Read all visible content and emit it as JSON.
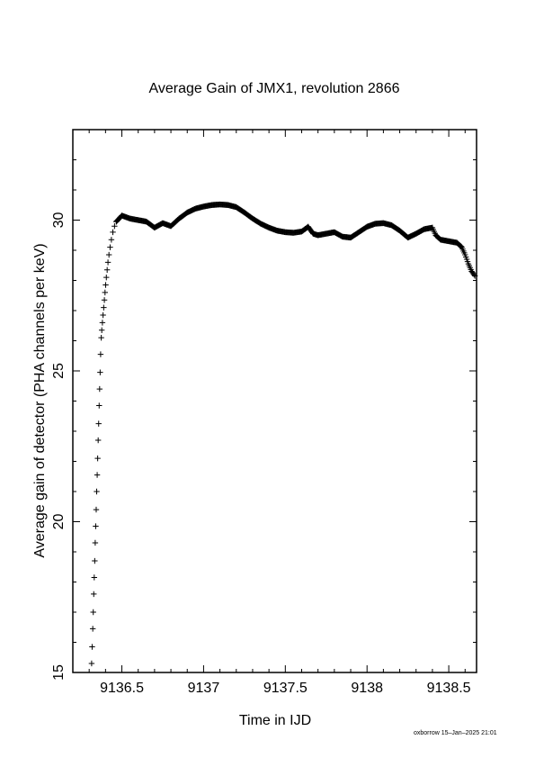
{
  "chart_data": {
    "type": "scatter",
    "title": "Average Gain of JMX1, revolution 2866",
    "xlabel": "Time in IJD",
    "ylabel": "Average gain of detector (PHA channels per keV)",
    "xlim": [
      9136.2,
      9138.67
    ],
    "ylim": [
      15,
      33
    ],
    "x_ticks": [
      9136.5,
      9137,
      9137.5,
      9138,
      9138.5
    ],
    "x_tick_labels": [
      "9136.5",
      "9137",
      "9137.5",
      "9138",
      "9138.5"
    ],
    "y_ticks": [
      15,
      20,
      25,
      30
    ],
    "y_tick_labels": [
      "15",
      "20",
      "25",
      "30"
    ],
    "marker": "+",
    "grid": false,
    "points_sparse": [
      [
        9136.315,
        15.3
      ],
      [
        9136.318,
        15.85
      ],
      [
        9136.322,
        16.45
      ],
      [
        9136.325,
        17.0
      ],
      [
        9136.328,
        17.6
      ],
      [
        9136.331,
        18.15
      ],
      [
        9136.334,
        18.7
      ],
      [
        9136.337,
        19.3
      ],
      [
        9136.34,
        19.85
      ],
      [
        9136.343,
        20.4
      ],
      [
        9136.346,
        21.0
      ],
      [
        9136.349,
        21.55
      ],
      [
        9136.352,
        22.1
      ],
      [
        9136.355,
        22.7
      ],
      [
        9136.358,
        23.25
      ],
      [
        9136.361,
        23.85
      ],
      [
        9136.364,
        24.4
      ],
      [
        9136.367,
        24.95
      ],
      [
        9136.37,
        25.55
      ],
      [
        9136.374,
        26.1
      ],
      [
        9136.377,
        26.35
      ],
      [
        9136.381,
        26.6
      ],
      [
        9136.385,
        26.85
      ],
      [
        9136.389,
        27.1
      ],
      [
        9136.393,
        27.35
      ],
      [
        9136.397,
        27.6
      ],
      [
        9136.401,
        27.85
      ],
      [
        9136.405,
        28.1
      ],
      [
        9136.41,
        28.35
      ],
      [
        9136.415,
        28.6
      ],
      [
        9136.421,
        28.85
      ],
      [
        9136.428,
        29.1
      ],
      [
        9136.436,
        29.35
      ],
      [
        9136.445,
        29.6
      ],
      [
        9136.455,
        29.8
      ],
      [
        9136.466,
        29.95
      ]
    ],
    "curve": [
      [
        9136.466,
        29.95
      ],
      [
        9136.5,
        30.15
      ],
      [
        9136.55,
        30.05
      ],
      [
        9136.6,
        30.0
      ],
      [
        9136.65,
        29.95
      ],
      [
        9136.7,
        29.75
      ],
      [
        9136.75,
        29.9
      ],
      [
        9136.8,
        29.8
      ],
      [
        9136.85,
        30.05
      ],
      [
        9136.9,
        30.25
      ],
      [
        9136.95,
        30.38
      ],
      [
        9137.0,
        30.45
      ],
      [
        9137.05,
        30.5
      ],
      [
        9137.1,
        30.52
      ],
      [
        9137.15,
        30.5
      ],
      [
        9137.2,
        30.43
      ],
      [
        9137.25,
        30.25
      ],
      [
        9137.3,
        30.05
      ],
      [
        9137.35,
        29.88
      ],
      [
        9137.4,
        29.75
      ],
      [
        9137.45,
        29.65
      ],
      [
        9137.5,
        29.6
      ],
      [
        9137.55,
        29.58
      ],
      [
        9137.6,
        29.62
      ],
      [
        9137.64,
        29.78
      ],
      [
        9137.67,
        29.55
      ],
      [
        9137.7,
        29.5
      ],
      [
        9137.75,
        29.55
      ],
      [
        9137.8,
        29.6
      ],
      [
        9137.85,
        29.45
      ],
      [
        9137.9,
        29.42
      ],
      [
        9137.95,
        29.6
      ],
      [
        9138.0,
        29.78
      ],
      [
        9138.05,
        29.88
      ],
      [
        9138.1,
        29.9
      ],
      [
        9138.15,
        29.83
      ],
      [
        9138.2,
        29.65
      ],
      [
        9138.25,
        29.42
      ],
      [
        9138.3,
        29.55
      ],
      [
        9138.35,
        29.7
      ],
      [
        9138.4,
        29.75
      ],
      [
        9138.42,
        29.5
      ],
      [
        9138.45,
        29.35
      ],
      [
        9138.5,
        29.3
      ],
      [
        9138.55,
        29.25
      ],
      [
        9138.58,
        29.1
      ],
      [
        9138.6,
        28.85
      ],
      [
        9138.62,
        28.55
      ],
      [
        9138.64,
        28.3
      ],
      [
        9138.66,
        28.15
      ]
    ]
  },
  "footer": "oxborrow 15–Jan–2025 21:01"
}
